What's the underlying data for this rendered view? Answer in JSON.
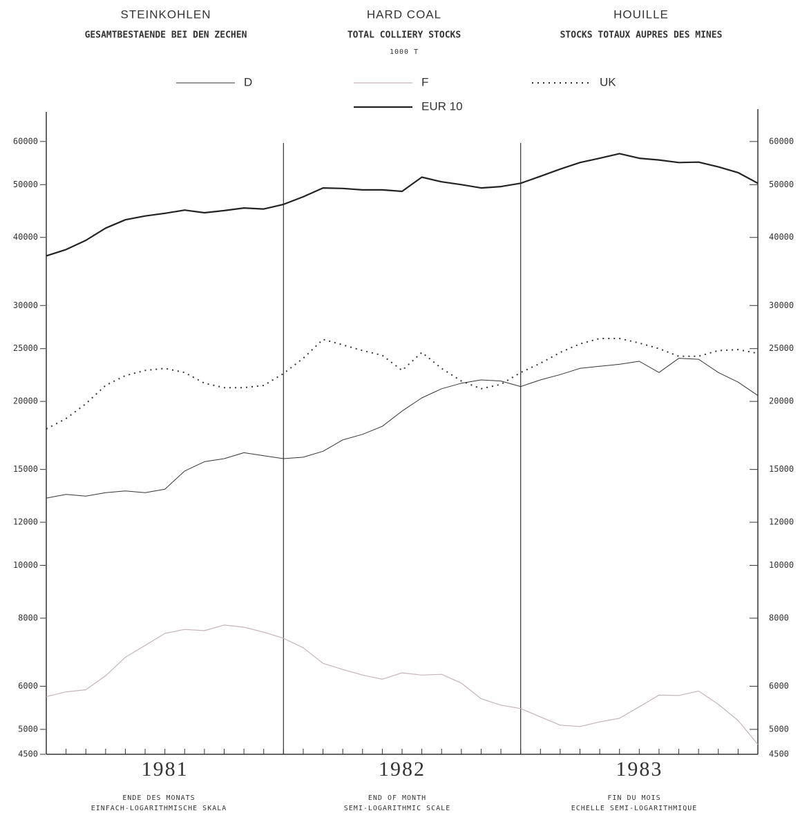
{
  "chart_data": {
    "type": "line",
    "title": [
      "STEINKOHLEN",
      "HARD COAL",
      "HOUILLE"
    ],
    "subtitle": [
      "GESAMTBESTAENDE BEI DEN ZECHEN",
      "TOTAL COLLIERY STOCKS",
      "STOCKS TOTAUX AUPRES DES MINES"
    ],
    "unit": "1000 T",
    "x_label": [
      [
        "ENDE DES MONATS",
        "EINFACH-LOGARITHMISCHE SKALA"
      ],
      [
        "END OF MONTH",
        "SEMI-LOGARITHMIC SCALE"
      ],
      [
        "FIN DU MOIS",
        "ECHELLE SEMI-LOGARITHMIQUE"
      ]
    ],
    "categories": [
      null,
      null,
      null,
      null,
      null,
      null,
      "1981",
      null,
      null,
      null,
      null,
      null,
      null,
      null,
      null,
      null,
      null,
      null,
      "1982",
      null,
      null,
      null,
      null,
      null,
      null,
      null,
      null,
      null,
      null,
      null,
      "1983",
      null,
      null,
      null,
      null,
      null,
      null
    ],
    "log_scale": true,
    "ylim": [
      4500,
      68000
    ],
    "yticks": [
      4500,
      5000,
      6000,
      8000,
      10000,
      12000,
      15000,
      20000,
      25000,
      30000,
      40000,
      50000,
      60000
    ],
    "series": [
      {
        "name": "D",
        "color": "#333333",
        "width": 1,
        "style": "solid",
        "values": [
          13290,
          13500,
          13400,
          13600,
          13700,
          13600,
          13800,
          14900,
          15500,
          15700,
          16100,
          15900,
          15700,
          15800,
          16200,
          17000,
          17400,
          18000,
          19200,
          20300,
          21100,
          21600,
          21900,
          21800,
          21300,
          21900,
          22400,
          23000,
          23200,
          23400,
          23700,
          22600,
          24000,
          23900,
          22600,
          21700,
          20500
        ]
      },
      {
        "name": "F",
        "color": "#c4b4b8",
        "width": 1.2,
        "style": "solid",
        "values": [
          5740,
          5860,
          5910,
          6270,
          6780,
          7130,
          7500,
          7630,
          7590,
          7770,
          7700,
          7540,
          7350,
          7060,
          6610,
          6440,
          6290,
          6180,
          6350,
          6290,
          6310,
          6080,
          5690,
          5540,
          5460,
          5270,
          5090,
          5060,
          5160,
          5240,
          5500,
          5780,
          5770,
          5880,
          5560,
          5190,
          4690
        ]
      },
      {
        "name": "UK",
        "color": "#333333",
        "width": 2,
        "style": "dotted",
        "values": [
          17800,
          18600,
          19800,
          21400,
          22300,
          22800,
          23000,
          22600,
          21600,
          21200,
          21200,
          21400,
          22500,
          24000,
          26000,
          25400,
          24800,
          24300,
          22800,
          24600,
          23000,
          21800,
          21100,
          21500,
          22600,
          23500,
          24600,
          25500,
          26100,
          26100,
          25600,
          25000,
          24200,
          24200,
          24800,
          24900,
          24500
        ]
      },
      {
        "name": "EUR 10",
        "color": "#222222",
        "width": 2.2,
        "style": "solid",
        "values": [
          37000,
          38000,
          39500,
          41600,
          43100,
          43800,
          44300,
          44900,
          44400,
          44800,
          45300,
          45100,
          46000,
          47500,
          49300,
          49200,
          48900,
          48900,
          48600,
          51600,
          50600,
          50000,
          49300,
          49600,
          50300,
          51800,
          53400,
          54900,
          55900,
          57000,
          55900,
          55500,
          54900,
          55000,
          53900,
          52600,
          50300
        ]
      }
    ]
  }
}
